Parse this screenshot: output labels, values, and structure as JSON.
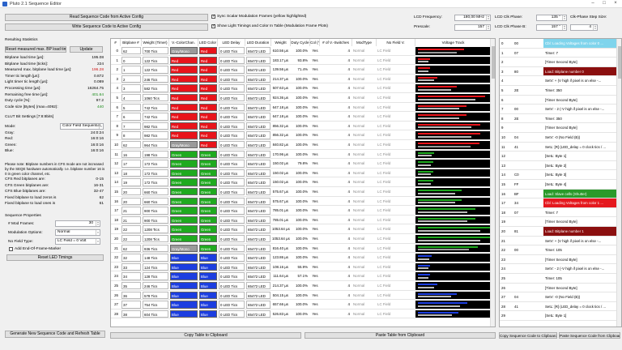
{
  "window": {
    "title": "Pluto 2.1 Sequence Editor"
  },
  "top": {
    "read_btn": "Read Sequence Code from Active Config",
    "write_btn": "Write Sequence Code to Active Config",
    "chk_sync": "Sync Scalar Modulation Frames (yellow highlighted)",
    "chk_show": "Show Light Timings and Color In Table (Modulation Frame Plots)",
    "lcd_freq_label": "LCD Frequency:",
    "lcd_freq_value": "180,00 MHz",
    "prescale_label": "Prescale:",
    "prescale_value": "157",
    "lcd_clk_phase_label": "LCD Clk Phase:",
    "lcd_clk_phase_value": "135 °",
    "lcd_clk_phaseb_label": "LCD Clk Phase B:",
    "lcd_clk_phaseb_value": "157 °",
    "clk_step_label": "Clk-Phase Step Size:",
    "clk_step_value": "4"
  },
  "left": {
    "stats_header": "Resulting Statistics",
    "reset_btn": "Reset measured max. BP load time",
    "update_btn": "Update",
    "stats": [
      {
        "label": "Bitplane load time [µs]:",
        "value": "195.08"
      },
      {
        "label": "Bitplane load time [ticks]:",
        "value": "224"
      },
      {
        "label": "Measured max. bitplane load time [µs]:",
        "value": "196.28"
      },
      {
        "label": "Timer tic length [µs]:",
        "value": "0.872"
      },
      {
        "label": "Light timer tic length [µs]:",
        "value": "0.089"
      },
      {
        "label": "Processing time [µs]:",
        "value": "16264.75"
      },
      {
        "label": "Remaining free time [µs]:",
        "value": "401.64"
      },
      {
        "label": "Duty cycle [%]:",
        "value": "97.2"
      },
      {
        "label": "Code size [Bytes] (max=4092):",
        "value": "440"
      }
    ],
    "clut_header": "CLUT Bit Settings [7:8:8bits]",
    "mode_label": "Mode:",
    "mode_value": "Color Field Sequential",
    "clut": [
      {
        "label": "Gray:",
        "value": "24:0:24"
      },
      {
        "label": "Red:",
        "value": "16:0:16"
      },
      {
        "label": "Green:",
        "value": "16:0:16"
      },
      {
        "label": "Blue:",
        "value": "16:0:16"
      }
    ],
    "note": "Please note: Bitplane numbers in CFS mode are not increased by the SEQE hardware automatically. I.e. bitplane number 16 is 0 in green color channel, etc.",
    "cfs": [
      {
        "label": "CFS Red bitplanes are:",
        "value": "0-15"
      },
      {
        "label": "CFS Green bitplanes are:",
        "value": "16-31"
      },
      {
        "label": "CFS Blue bitplanes are:",
        "value": "32-47"
      },
      {
        "label": "Fixed bitplane to load zeros is",
        "value": "62"
      },
      {
        "label": "Fixed bitplane to load ones is",
        "value": "61"
      }
    ],
    "seq_header": "Sequence Properties",
    "mod_frames_label": "# Mod Frames:",
    "mod_frames_value": "30",
    "mod_options_label": "Modulation Options:",
    "mod_options_value": "Normal",
    "no_field_label": "No Field Type:",
    "no_field_value": "LC Field = 0 Volt",
    "eof_label": "Add End-Of-Frame-Marker",
    "reset_led_btn": "Reset LED Timings",
    "generate_btn": "Generate New Sequence Code and Refresh Table"
  },
  "table": {
    "headers": [
      "#",
      "Bitplane #",
      "Weight (Timer)",
      "V.-ColorChan.",
      "LED Color",
      "LED Delay",
      "LED Duration",
      "Weight",
      "Duty Cycle",
      "Col (Ye",
      "# of V.-Switches",
      "ModType",
      "No Field V.",
      "Voltage Track"
    ],
    "rows": [
      [
        "0",
        "62",
        "700 Tics",
        "Gray/Mono",
        "Red",
        "0 LED Tics",
        "65472 LED",
        "610.56 µs",
        "100.0%",
        "Yes",
        "4",
        "Normal",
        "LC Field"
      ],
      [
        "1",
        "0",
        "122 Tics",
        "Red",
        "Red",
        "0 LED Tics",
        "65472 LED",
        "183.17 µs",
        "93.8%",
        "Yes",
        "4",
        "Normal",
        "LC Field"
      ],
      [
        "2",
        "1",
        "122 Tics",
        "Red",
        "Red",
        "0 LED Tics",
        "65472 LED",
        "139.56 µs",
        "71.4%",
        "Yes",
        "4",
        "Normal",
        "LC Field"
      ],
      [
        "3",
        "2",
        "246 Tics",
        "Red",
        "Red",
        "0 LED Tics",
        "65472 LED",
        "214.37 µs",
        "100.0%",
        "Yes",
        "4",
        "Normal",
        "LC Field"
      ],
      [
        "4",
        "3",
        "582 Tics",
        "Red",
        "Red",
        "0 LED Tics",
        "65472 LED",
        "507.63 µs",
        "100.0%",
        "Yes",
        "4",
        "Normal",
        "LC Field"
      ],
      [
        "5",
        "4",
        "1060 Tics",
        "Red",
        "Red",
        "0 LED Tics",
        "65472 LED",
        "924.36 µs",
        "100.0%",
        "Yes",
        "4",
        "Normal",
        "LC Field"
      ],
      [
        "6",
        "5",
        "742 Tics",
        "Red",
        "Red",
        "0 LED Tics",
        "65472 LED",
        "647.18 µs",
        "100.0%",
        "Yes",
        "4",
        "Normal",
        "LC Field"
      ],
      [
        "7",
        "6",
        "742 Tics",
        "Red",
        "Red",
        "0 LED Tics",
        "65472 LED",
        "647.18 µs",
        "100.0%",
        "Yes",
        "4",
        "Normal",
        "LC Field"
      ],
      [
        "8",
        "7",
        "982 Tics",
        "Red",
        "Red",
        "0 LED Tics",
        "65472 LED",
        "856.32 µs",
        "100.0%",
        "Yes",
        "4",
        "Normal",
        "LC Field"
      ],
      [
        "9",
        "8",
        "982 Tics",
        "Red",
        "Red",
        "0 LED Tics",
        "65472 LED",
        "856.32 µs",
        "100.0%",
        "Yes",
        "4",
        "Normal",
        "LC Field"
      ],
      [
        "10",
        "62",
        "964 Tics",
        "Gray/Mono",
        "Red",
        "0 LED Tics",
        "65472 LED",
        "840.82 µs",
        "100.0%",
        "Yes",
        "4",
        "Normal",
        "LC Field"
      ],
      [
        "11",
        "16",
        "198 Tics",
        "Green",
        "Green",
        "0 LED Tics",
        "65472 LED",
        "170.96 µs",
        "100.0%",
        "Yes",
        "4",
        "Normal",
        "LC Field"
      ],
      [
        "12",
        "17",
        "172 Tics",
        "Green",
        "Green",
        "0 LED Tics",
        "65472 LED",
        "150.02 µs",
        "79.8%",
        "Yes",
        "4",
        "Normal",
        "LC Field"
      ],
      [
        "13",
        "18",
        "172 Tics",
        "Green",
        "Green",
        "0 LED Tics",
        "65472 LED",
        "150.02 µs",
        "100.0%",
        "Yes",
        "4",
        "Normal",
        "LC Field"
      ],
      [
        "14",
        "19",
        "172 Tics",
        "Green",
        "Green",
        "0 LED Tics",
        "65472 LED",
        "150.02 µs",
        "100.0%",
        "Yes",
        "4",
        "Normal",
        "LC Field"
      ],
      [
        "15",
        "20",
        "660 Tics",
        "Green",
        "Green",
        "0 LED Tics",
        "65472 LED",
        "575.67 µs",
        "100.0%",
        "Yes",
        "4",
        "Normal",
        "LC Field"
      ],
      [
        "16",
        "20",
        "660 Tics",
        "Green",
        "Green",
        "0 LED Tics",
        "65472 LED",
        "575.67 µs",
        "100.0%",
        "Yes",
        "4",
        "Normal",
        "LC Field"
      ],
      [
        "17",
        "21",
        "900 Tics",
        "Green",
        "Green",
        "0 LED Tics",
        "65472 LED",
        "785.01 µs",
        "100.0%",
        "Yes",
        "4",
        "Normal",
        "LC Field"
      ],
      [
        "18",
        "21",
        "900 Tics",
        "Green",
        "Green",
        "0 LED Tics",
        "65472 LED",
        "785.01 µs",
        "100.0%",
        "Yes",
        "4",
        "Normal",
        "LC Field"
      ],
      [
        "19",
        "22",
        "1208 Tics",
        "Green",
        "Green",
        "0 LED Tics",
        "65472 LED",
        "1053.64 µs",
        "100.0%",
        "Yes",
        "4",
        "Normal",
        "LC Field"
      ],
      [
        "20",
        "22",
        "1208 Tics",
        "Green",
        "Green",
        "0 LED Tics",
        "65472 LED",
        "1053.64 µs",
        "100.0%",
        "Yes",
        "4",
        "Normal",
        "LC Field"
      ],
      [
        "21",
        "62",
        "936 Tics",
        "Gray/Mono",
        "Green",
        "0 LED Tics",
        "65472 LED",
        "816.40 µs",
        "100.0%",
        "Yes",
        "4",
        "Normal",
        "LC Field"
      ],
      [
        "22",
        "32",
        "148 Tics",
        "Blue",
        "Blue",
        "0 LED Tics",
        "65472 LED",
        "123.86 µs",
        "100.0%",
        "Yes",
        "4",
        "Normal",
        "LC Field"
      ],
      [
        "23",
        "33",
        "124 Tics",
        "Blue",
        "Blue",
        "0 LED Tics",
        "65472 LED",
        "108.16 µs",
        "55.9%",
        "Yes",
        "4",
        "Normal",
        "LC Field"
      ],
      [
        "24",
        "34",
        "128 Tics",
        "Blue",
        "Blue",
        "0 LED Tics",
        "65472 LED",
        "111.64 µs",
        "57.1%",
        "Yes",
        "4",
        "Normal",
        "LC Field"
      ],
      [
        "25",
        "35",
        "246 Tics",
        "Blue",
        "Blue",
        "0 LED Tics",
        "65472 LED",
        "214.37 µs",
        "100.0%",
        "Yes",
        "4",
        "Normal",
        "LC Field"
      ],
      [
        "26",
        "36",
        "578 Tics",
        "Blue",
        "Blue",
        "0 LED Tics",
        "65472 LED",
        "504.15 µs",
        "100.0%",
        "Yes",
        "4",
        "Normal",
        "LC Field"
      ],
      [
        "27",
        "37",
        "754 Tics",
        "Blue",
        "Blue",
        "0 LED Tics",
        "65472 LED",
        "657.66 µs",
        "100.0%",
        "Yes",
        "4",
        "Normal",
        "LC Field"
      ],
      [
        "28",
        "38",
        "604 Tics",
        "Blue",
        "Blue",
        "0 LED Tics",
        "65472 LED",
        "526.83 µs",
        "100.0%",
        "Yes",
        "4",
        "Normal",
        "LC Field"
      ]
    ],
    "copy_btn": "Copy Table to Clipboard",
    "paste_btn": "Paste Table from Clipboard"
  },
  "code": {
    "items": [
      [
        "0",
        "00",
        "Cbl: Loading Voltages from color 0 ...",
        "cyan"
      ],
      [
        "1",
        "07",
        "Timer: 7",
        ""
      ],
      [
        "2",
        "",
        "[Timer Second Byte]",
        ""
      ],
      [
        "3",
        "80",
        "Load: Bitplane number 0",
        "darkred"
      ],
      [
        "4",
        "",
        "SetV: + (V high if pixel is on else -...",
        ""
      ],
      [
        "5",
        "2E",
        "Timer: 350",
        ""
      ],
      [
        "6",
        "",
        "[Timer Second Byte]",
        ""
      ],
      [
        "7",
        "00",
        "SetV: - 2 (-V high if pixel is on else -...",
        ""
      ],
      [
        "8",
        "2E",
        "Timer: 350",
        ""
      ],
      [
        "9",
        "",
        "[Timer Second Byte]",
        ""
      ],
      [
        "10",
        "04",
        "SetV: -0 (No Field (B))",
        ""
      ],
      [
        "11",
        "41",
        "SetL: [R] (LED_delay = 0 clock tics / ...",
        ""
      ],
      [
        "12",
        "",
        "[SetL: Byte 1]",
        ""
      ],
      [
        "13",
        "",
        "[SetL: Byte 2]",
        ""
      ],
      [
        "14",
        "C0",
        "[SetL: Byte 3]",
        ""
      ],
      [
        "15",
        "FF",
        "[SetL: Byte 4]",
        ""
      ],
      [
        "16",
        "BF",
        "Load: Slave cells (Shutter)",
        "green"
      ],
      [
        "17",
        "34",
        "Cbl: Loading Voltages from color 1 ...",
        "red"
      ],
      [
        "18",
        "07",
        "Timer: 7",
        ""
      ],
      [
        "19",
        "",
        "[Timer Second Byte]",
        ""
      ],
      [
        "20",
        "81",
        "Load: Bitplane number 1",
        "darkred"
      ],
      [
        "21",
        "",
        "SetV: + (V high if pixel is on else -...",
        ""
      ],
      [
        "22",
        "00",
        "Timer: 105",
        ""
      ],
      [
        "23",
        "",
        "[Timer Second Byte]",
        ""
      ],
      [
        "24",
        "",
        "SetV: - 2 (-V high if pixel is on else -...",
        ""
      ],
      [
        "25",
        "",
        "Timer: 105",
        ""
      ],
      [
        "26",
        "",
        "[Timer Second Byte]",
        ""
      ],
      [
        "27",
        "04",
        "SetV: -0 (No Field (B))",
        ""
      ],
      [
        "28",
        "41",
        "SetL: [R] (LED_delay = 0 clock tics / ...",
        ""
      ],
      [
        "29",
        "",
        "[SetL: Byte 1]",
        ""
      ]
    ],
    "copy_btn": "Copy Sequence Code to Clipboard",
    "paste_btn": "Paste Sequence Code from Clipboard"
  },
  "colors": {
    "red": "#e8141b",
    "green": "#1faa1f",
    "blue": "#1c3ee0",
    "gray": "#9a9a9a",
    "cyan": "#7fd4ec",
    "darkred": "#8b0f0f",
    "slave": "#2a9a2a",
    "loadred": "#e5181e"
  }
}
